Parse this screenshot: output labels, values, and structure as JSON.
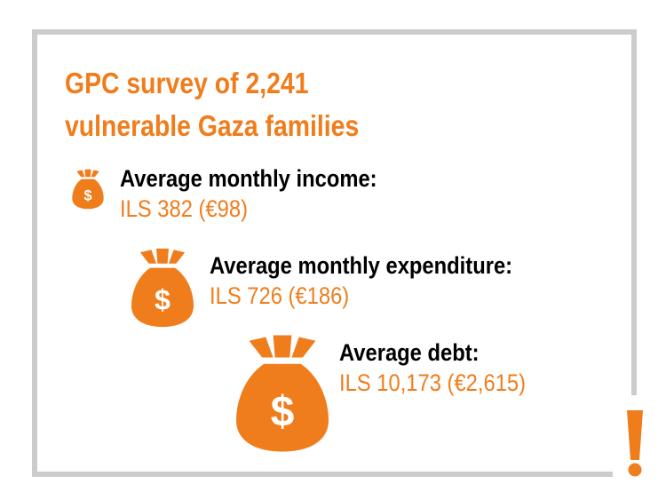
{
  "title_line1": "GPC survey of 2,241",
  "title_line2": "vulnerable Gaza families",
  "stats": [
    {
      "label": "Average monthly income:",
      "value": "ILS 382 (€98)",
      "icon": "money-bag-icon"
    },
    {
      "label": "Average monthly expenditure:",
      "value": "ILS 726 (€186)",
      "icon": "money-bag-icon"
    },
    {
      "label": "Average debt:",
      "value": "ILS 10,173 (€2,615)",
      "icon": "money-bag-icon"
    }
  ],
  "colors": {
    "accent": "#f07d1c",
    "frame": "#cccccc",
    "text": "#000000"
  },
  "decoration": {
    "alert_icon": "exclamation-icon"
  }
}
